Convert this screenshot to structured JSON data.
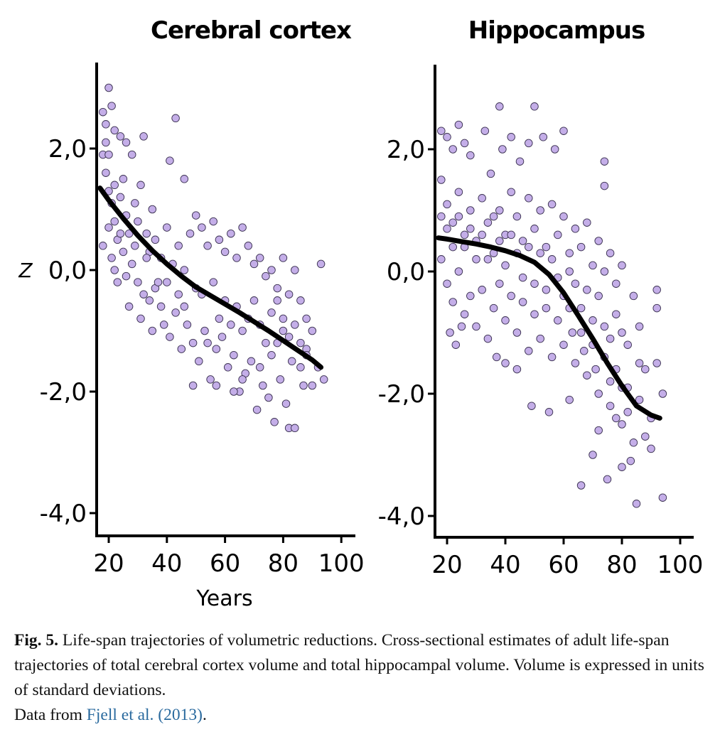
{
  "figure": {
    "ylabel": "Z",
    "xlabel": "Years"
  },
  "chart_data": [
    {
      "type": "scatter",
      "title": "Cerebral cortex",
      "xlabel": "Years",
      "ylabel": "Z",
      "xlim": [
        15,
        100
      ],
      "ylim": [
        -4.3,
        3.4
      ],
      "xticks": [
        20,
        40,
        60,
        80,
        100
      ],
      "xtick_labels": [
        "20",
        "40",
        "60",
        "80",
        "100"
      ],
      "yticks": [
        2,
        0,
        -2,
        -4
      ],
      "ytick_labels": [
        "2,0",
        "0,0",
        "-2,0",
        "-4,0"
      ],
      "points": [
        [
          18,
          2.6
        ],
        [
          19,
          2.4
        ],
        [
          20,
          3.0
        ],
        [
          21,
          2.7
        ],
        [
          22,
          2.3
        ],
        [
          24,
          2.2
        ],
        [
          26,
          2.1
        ],
        [
          28,
          1.9
        ],
        [
          32,
          2.2
        ],
        [
          43,
          2.5
        ],
        [
          41,
          1.8
        ],
        [
          46,
          1.5
        ],
        [
          18,
          1.9
        ],
        [
          19,
          1.6
        ],
        [
          20,
          1.3
        ],
        [
          21,
          1.1
        ],
        [
          22,
          0.8
        ],
        [
          23,
          0.5
        ],
        [
          24,
          1.2
        ],
        [
          25,
          1.5
        ],
        [
          26,
          0.9
        ],
        [
          27,
          0.6
        ],
        [
          29,
          1.1
        ],
        [
          30,
          0.8
        ],
        [
          31,
          1.4
        ],
        [
          33,
          0.6
        ],
        [
          34,
          0.3
        ],
        [
          35,
          1.0
        ],
        [
          36,
          0.5
        ],
        [
          38,
          0.2
        ],
        [
          40,
          0.7
        ],
        [
          18,
          0.4
        ],
        [
          20,
          0.7
        ],
        [
          21,
          0.2
        ],
        [
          22,
          0.0
        ],
        [
          23,
          -0.2
        ],
        [
          25,
          0.3
        ],
        [
          28,
          0.1
        ],
        [
          30,
          -0.2
        ],
        [
          32,
          -0.4
        ],
        [
          34,
          -0.5
        ],
        [
          36,
          -0.3
        ],
        [
          38,
          -0.6
        ],
        [
          40,
          -0.2
        ],
        [
          42,
          0.1
        ],
        [
          44,
          0.4
        ],
        [
          46,
          0.0
        ],
        [
          48,
          0.6
        ],
        [
          50,
          0.9
        ],
        [
          52,
          0.7
        ],
        [
          54,
          0.4
        ],
        [
          56,
          0.8
        ],
        [
          58,
          0.5
        ],
        [
          60,
          0.3
        ],
        [
          62,
          0.6
        ],
        [
          64,
          0.2
        ],
        [
          66,
          0.7
        ],
        [
          68,
          0.4
        ],
        [
          70,
          0.1
        ],
        [
          72,
          0.2
        ],
        [
          74,
          -0.1
        ],
        [
          76,
          0.0
        ],
        [
          78,
          -0.3
        ],
        [
          80,
          0.2
        ],
        [
          82,
          -0.4
        ],
        [
          84,
          0.0
        ],
        [
          86,
          -0.5
        ],
        [
          88,
          -0.8
        ],
        [
          90,
          -1.0
        ],
        [
          93,
          0.1
        ],
        [
          27,
          -0.6
        ],
        [
          31,
          -0.8
        ],
        [
          35,
          -1.0
        ],
        [
          39,
          -0.9
        ],
        [
          41,
          -1.1
        ],
        [
          43,
          -0.7
        ],
        [
          45,
          -1.3
        ],
        [
          47,
          -0.9
        ],
        [
          49,
          -1.2
        ],
        [
          51,
          -1.5
        ],
        [
          53,
          -1.0
        ],
        [
          55,
          -1.8
        ],
        [
          57,
          -1.3
        ],
        [
          59,
          -1.1
        ],
        [
          61,
          -1.6
        ],
        [
          63,
          -1.4
        ],
        [
          65,
          -2.0
        ],
        [
          67,
          -1.7
        ],
        [
          69,
          -1.5
        ],
        [
          71,
          -2.3
        ],
        [
          73,
          -1.9
        ],
        [
          75,
          -2.1
        ],
        [
          77,
          -2.5
        ],
        [
          79,
          -1.8
        ],
        [
          81,
          -2.2
        ],
        [
          82,
          -2.6
        ],
        [
          84,
          -2.6
        ],
        [
          86,
          -1.6
        ],
        [
          88,
          -1.3
        ],
        [
          90,
          -1.9
        ],
        [
          92,
          -1.6
        ],
        [
          94,
          -1.8
        ],
        [
          49,
          -1.9
        ],
        [
          57,
          -1.9
        ],
        [
          63,
          -2.0
        ],
        [
          66,
          -1.8
        ],
        [
          72,
          -1.6
        ],
        [
          76,
          -1.4
        ],
        [
          78,
          -1.2
        ],
        [
          80,
          -1.0
        ],
        [
          83,
          -1.5
        ],
        [
          87,
          -1.9
        ],
        [
          46,
          -0.6
        ],
        [
          52,
          -0.4
        ],
        [
          56,
          -0.2
        ],
        [
          60,
          -0.5
        ],
        [
          62,
          -0.9
        ],
        [
          64,
          -0.6
        ],
        [
          66,
          -1.0
        ],
        [
          68,
          -0.8
        ],
        [
          70,
          -0.5
        ],
        [
          72,
          -0.9
        ],
        [
          74,
          -1.2
        ],
        [
          76,
          -0.7
        ],
        [
          78,
          -0.5
        ],
        [
          80,
          -0.8
        ],
        [
          82,
          -1.1
        ],
        [
          84,
          -0.9
        ],
        [
          86,
          -1.2
        ],
        [
          88,
          -1.4
        ],
        [
          58,
          -0.8
        ],
        [
          54,
          -1.2
        ],
        [
          50,
          -0.3
        ],
        [
          44,
          -0.4
        ],
        [
          37,
          -0.2
        ],
        [
          33,
          0.2
        ],
        [
          29,
          0.4
        ],
        [
          26,
          -0.1
        ],
        [
          24,
          0.6
        ],
        [
          22,
          1.4
        ],
        [
          20,
          1.9
        ],
        [
          19,
          2.1
        ]
      ],
      "fit": [
        [
          17,
          1.35
        ],
        [
          20,
          1.15
        ],
        [
          25,
          0.85
        ],
        [
          30,
          0.57
        ],
        [
          35,
          0.32
        ],
        [
          40,
          0.1
        ],
        [
          45,
          -0.1
        ],
        [
          50,
          -0.28
        ],
        [
          55,
          -0.42
        ],
        [
          60,
          -0.56
        ],
        [
          65,
          -0.7
        ],
        [
          70,
          -0.85
        ],
        [
          75,
          -1.0
        ],
        [
          80,
          -1.16
        ],
        [
          85,
          -1.32
        ],
        [
          90,
          -1.48
        ],
        [
          93,
          -1.6
        ]
      ]
    },
    {
      "type": "scatter",
      "title": "Hippocampus",
      "xlabel": "",
      "ylabel": "",
      "xlim": [
        15,
        100
      ],
      "ylim": [
        -4.3,
        3.4
      ],
      "xticks": [
        20,
        40,
        60,
        80,
        100
      ],
      "xtick_labels": [
        "20",
        "40",
        "60",
        "80",
        "100"
      ],
      "yticks": [
        2,
        0,
        -2,
        -4
      ],
      "ytick_labels": [
        "2,0",
        "0,0",
        "-2,0",
        "-4,0"
      ],
      "points": [
        [
          18,
          2.3
        ],
        [
          20,
          2.2
        ],
        [
          22,
          2.0
        ],
        [
          24,
          2.4
        ],
        [
          26,
          2.1
        ],
        [
          28,
          1.9
        ],
        [
          33,
          2.3
        ],
        [
          35,
          1.6
        ],
        [
          38,
          2.7
        ],
        [
          39,
          2.0
        ],
        [
          42,
          2.2
        ],
        [
          45,
          1.8
        ],
        [
          48,
          2.1
        ],
        [
          50,
          2.7
        ],
        [
          53,
          2.2
        ],
        [
          57,
          2.0
        ],
        [
          60,
          2.3
        ],
        [
          74,
          1.8
        ],
        [
          74,
          1.4
        ],
        [
          18,
          1.5
        ],
        [
          20,
          1.1
        ],
        [
          22,
          0.8
        ],
        [
          24,
          1.3
        ],
        [
          26,
          0.6
        ],
        [
          28,
          1.0
        ],
        [
          30,
          0.5
        ],
        [
          32,
          1.2
        ],
        [
          34,
          0.8
        ],
        [
          36,
          0.3
        ],
        [
          38,
          1.0
        ],
        [
          40,
          0.6
        ],
        [
          42,
          1.3
        ],
        [
          44,
          0.9
        ],
        [
          46,
          0.5
        ],
        [
          48,
          1.2
        ],
        [
          50,
          0.7
        ],
        [
          52,
          1.0
        ],
        [
          54,
          0.4
        ],
        [
          56,
          1.1
        ],
        [
          58,
          0.6
        ],
        [
          60,
          0.9
        ],
        [
          62,
          0.3
        ],
        [
          64,
          0.7
        ],
        [
          66,
          0.4
        ],
        [
          68,
          0.8
        ],
        [
          70,
          0.1
        ],
        [
          72,
          0.5
        ],
        [
          74,
          0.0
        ],
        [
          76,
          0.3
        ],
        [
          78,
          -0.2
        ],
        [
          80,
          0.1
        ],
        [
          18,
          0.2
        ],
        [
          20,
          -0.2
        ],
        [
          22,
          -0.5
        ],
        [
          24,
          0.0
        ],
        [
          26,
          -0.7
        ],
        [
          28,
          -0.4
        ],
        [
          30,
          -0.9
        ],
        [
          32,
          -0.3
        ],
        [
          34,
          -1.1
        ],
        [
          36,
          -0.6
        ],
        [
          38,
          -0.2
        ],
        [
          40,
          -0.8
        ],
        [
          42,
          -0.4
        ],
        [
          44,
          -1.0
        ],
        [
          46,
          -0.5
        ],
        [
          48,
          -1.3
        ],
        [
          50,
          -0.7
        ],
        [
          52,
          -1.1
        ],
        [
          54,
          -0.3
        ],
        [
          56,
          -1.4
        ],
        [
          58,
          -0.8
        ],
        [
          60,
          -1.2
        ],
        [
          62,
          -0.6
        ],
        [
          64,
          -1.5
        ],
        [
          66,
          -1.0
        ],
        [
          68,
          -1.7
        ],
        [
          70,
          -1.2
        ],
        [
          72,
          -2.0
        ],
        [
          74,
          -1.4
        ],
        [
          76,
          -2.2
        ],
        [
          78,
          -1.6
        ],
        [
          80,
          -2.5
        ],
        [
          82,
          -1.9
        ],
        [
          84,
          -2.8
        ],
        [
          86,
          -2.1
        ],
        [
          88,
          -1.6
        ],
        [
          90,
          -2.4
        ],
        [
          92,
          -1.5
        ],
        [
          94,
          -2.0
        ],
        [
          21,
          -1.0
        ],
        [
          23,
          -1.2
        ],
        [
          25,
          -0.9
        ],
        [
          37,
          -1.4
        ],
        [
          40,
          -1.5
        ],
        [
          44,
          -1.6
        ],
        [
          49,
          -2.2
        ],
        [
          55,
          -2.3
        ],
        [
          62,
          -2.1
        ],
        [
          66,
          -3.5
        ],
        [
          70,
          -3.0
        ],
        [
          72,
          -2.6
        ],
        [
          75,
          -3.4
        ],
        [
          78,
          -2.4
        ],
        [
          80,
          -3.2
        ],
        [
          83,
          -3.1
        ],
        [
          85,
          -3.8
        ],
        [
          88,
          -2.7
        ],
        [
          90,
          -2.9
        ],
        [
          94,
          -3.7
        ],
        [
          92,
          -0.3
        ],
        [
          92,
          -0.6
        ],
        [
          86,
          -0.9
        ],
        [
          84,
          -0.4
        ],
        [
          82,
          -1.2
        ],
        [
          86,
          -1.5
        ],
        [
          80,
          -1.0
        ],
        [
          78,
          -0.7
        ],
        [
          76,
          -1.1
        ],
        [
          74,
          -0.9
        ],
        [
          72,
          -0.4
        ],
        [
          70,
          -0.8
        ],
        [
          68,
          -0.3
        ],
        [
          66,
          -0.6
        ],
        [
          64,
          -0.2
        ],
        [
          62,
          0.0
        ],
        [
          60,
          -0.4
        ],
        [
          58,
          -0.1
        ],
        [
          56,
          0.2
        ],
        [
          54,
          -0.6
        ],
        [
          52,
          0.3
        ],
        [
          50,
          -0.2
        ],
        [
          48,
          0.4
        ],
        [
          46,
          -0.1
        ],
        [
          44,
          0.3
        ],
        [
          42,
          0.6
        ],
        [
          40,
          0.1
        ],
        [
          38,
          0.5
        ],
        [
          36,
          0.9
        ],
        [
          34,
          0.2
        ],
        [
          32,
          0.6
        ],
        [
          30,
          0.2
        ],
        [
          28,
          0.7
        ],
        [
          26,
          0.4
        ],
        [
          24,
          0.9
        ],
        [
          22,
          0.4
        ],
        [
          20,
          0.7
        ],
        [
          18,
          0.9
        ],
        [
          80,
          -1.9
        ],
        [
          82,
          -2.3
        ],
        [
          76,
          -1.8
        ],
        [
          71,
          -1.6
        ],
        [
          67,
          -1.3
        ],
        [
          63,
          -1.0
        ]
      ],
      "fit": [
        [
          17,
          0.55
        ],
        [
          20,
          0.53
        ],
        [
          25,
          0.49
        ],
        [
          30,
          0.45
        ],
        [
          35,
          0.4
        ],
        [
          40,
          0.34
        ],
        [
          45,
          0.26
        ],
        [
          50,
          0.15
        ],
        [
          55,
          -0.05
        ],
        [
          60,
          -0.35
        ],
        [
          65,
          -0.72
        ],
        [
          70,
          -1.1
        ],
        [
          75,
          -1.5
        ],
        [
          80,
          -1.87
        ],
        [
          85,
          -2.2
        ],
        [
          90,
          -2.35
        ],
        [
          93,
          -2.4
        ]
      ]
    }
  ],
  "caption": {
    "label": "Fig. 5.",
    "text": " Life-span trajectories of volumetric reductions. Cross-sectional estimates of adult life-span trajectories of total cerebral cortex volume and total hippocampal volume. Volume is expressed in units of standard deviations.",
    "source_prefix": "Data from ",
    "source_link": "Fjell et al. (2013)",
    "source_suffix": "."
  }
}
